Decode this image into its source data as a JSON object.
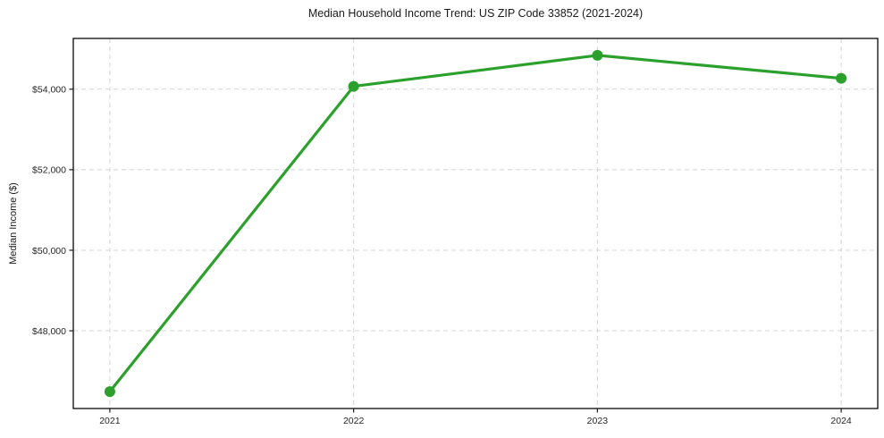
{
  "chart_data": {
    "type": "line",
    "title": "Median Household Income Trend: US ZIP Code 33852 (2021-2024)",
    "xlabel": "",
    "ylabel": "Median Income ($)",
    "x": [
      2021,
      2022,
      2023,
      2024
    ],
    "categories": [
      "2021",
      "2022",
      "2023",
      "2024"
    ],
    "series": [
      {
        "name": "Median Household Income",
        "values": [
          46490,
          54070,
          54840,
          54270
        ],
        "color": "#2ca02c",
        "marker": "circle",
        "line_width": 3.2,
        "marker_radius": 6
      }
    ],
    "xlim": [
      2020.85,
      2024.15
    ],
    "ylim": [
      46070,
      55260
    ],
    "xticks": [
      {
        "value": 2021,
        "label": "2021"
      },
      {
        "value": 2022,
        "label": "2022"
      },
      {
        "value": 2023,
        "label": "2023"
      },
      {
        "value": 2024,
        "label": "2024"
      }
    ],
    "yticks": [
      {
        "value": 48000,
        "label": "$48,000"
      },
      {
        "value": 50000,
        "label": "$50,000"
      },
      {
        "value": 52000,
        "label": "$52,000"
      },
      {
        "value": 54000,
        "label": "$54,000"
      }
    ],
    "grid": true,
    "grid_style": "dashed",
    "grid_color": "#d4d4d4",
    "legend": "none",
    "background_color": "#ffffff",
    "spine_color": "#1a1a1a"
  }
}
